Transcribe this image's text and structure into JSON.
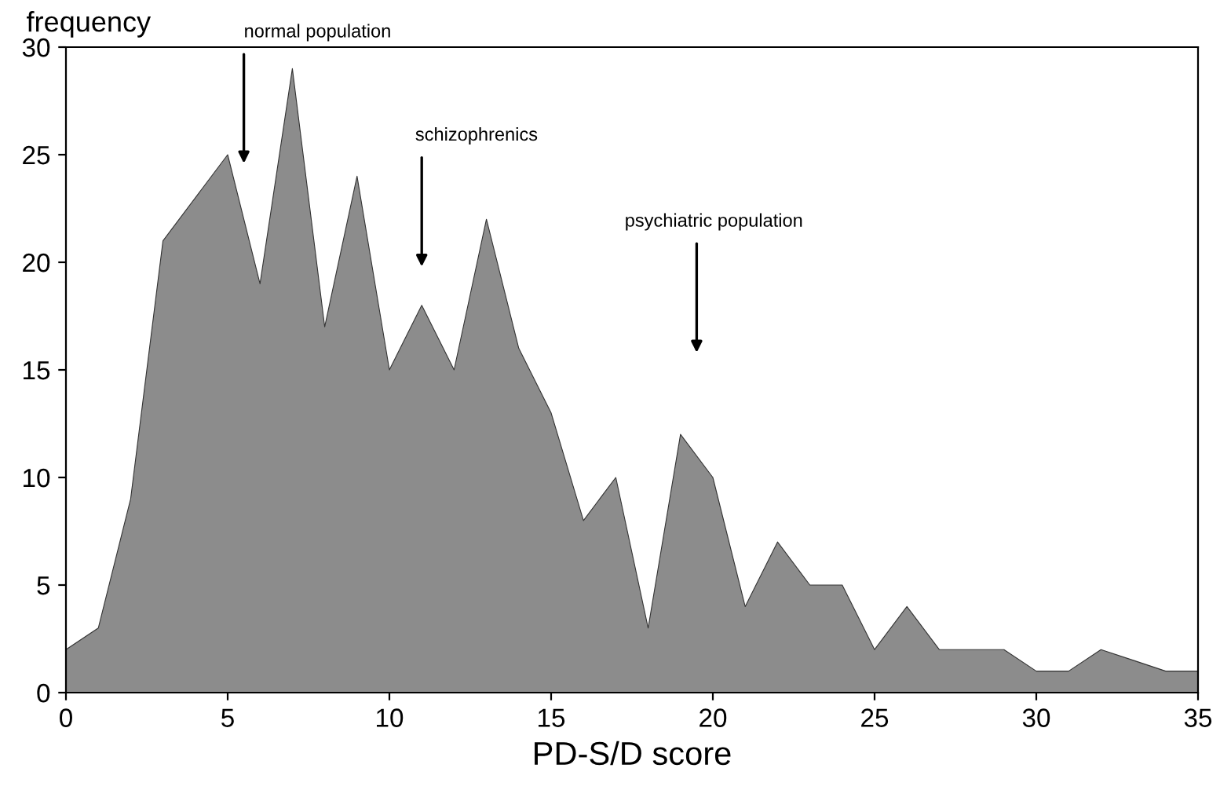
{
  "chart_data": {
    "type": "area",
    "ylabel": "frequency",
    "xlabel": "PD-S/D score",
    "x": [
      0,
      1,
      2,
      3,
      4,
      5,
      6,
      7,
      8,
      9,
      10,
      11,
      12,
      13,
      14,
      15,
      16,
      17,
      18,
      19,
      20,
      21,
      22,
      23,
      24,
      25,
      26,
      27,
      28,
      29,
      30,
      31,
      32,
      33,
      34,
      35
    ],
    "series": [
      {
        "color": "#8c8c8c",
        "values": [
          2,
          3,
          9,
          21,
          23,
          25,
          19,
          29,
          17,
          24,
          15,
          18,
          15,
          22,
          16,
          13,
          8,
          10,
          3,
          12,
          10,
          4,
          7,
          5,
          5,
          2,
          4,
          2,
          2,
          2,
          1,
          1,
          2,
          1.5,
          1,
          1
        ]
      }
    ],
    "xlim": [
      0,
      35
    ],
    "xticks": [
      0,
      5,
      10,
      15,
      20,
      25,
      30,
      35
    ],
    "ylim": [
      0,
      30
    ],
    "yticks": [
      0,
      5,
      10,
      15,
      20,
      25,
      30
    ],
    "grid": false,
    "legend": false,
    "annotations": [
      "normal population",
      "schizophrenics",
      "psychiatric population"
    ]
  }
}
